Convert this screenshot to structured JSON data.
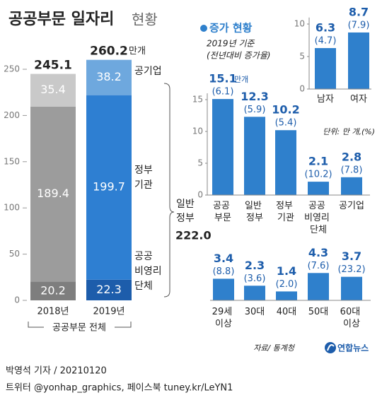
{
  "title": "공공부문 일자리",
  "title_suffix": "현황",
  "chart_data": [
    {
      "type": "stacked-bar",
      "categories": [
        "2018년",
        "2019년"
      ],
      "series": [
        {
          "name": "공공 비영리 단체",
          "colors": [
            "#7e7e7e",
            "#1d5dab"
          ],
          "values": [
            20.2,
            22.3
          ]
        },
        {
          "name": "정부 기관",
          "colors": [
            "#9c9c9c",
            "#2e7fd2"
          ],
          "values": [
            189.4,
            199.7
          ]
        },
        {
          "name": "공기업",
          "colors": [
            "#c9c9c9",
            "#6ea8de"
          ],
          "values": [
            35.4,
            38.2
          ]
        }
      ],
      "totals": [
        245.1,
        260.2
      ],
      "total_unit": "만개",
      "ylim": [
        0,
        265
      ],
      "yticks": [
        0,
        50,
        100,
        150,
        200,
        250
      ],
      "group_label": "공공부문 전체",
      "annotation": {
        "text": "일반 정부",
        "value": 222,
        "label": "222.0"
      }
    },
    {
      "type": "bar",
      "title": "증가 현황",
      "subtitle": [
        "2019년 기준",
        "(전년대비 증가율)"
      ],
      "categories": [
        "남자",
        "여자"
      ],
      "values": [
        6.3,
        8.7
      ],
      "rate_labels": [
        "(4.7)",
        "(7.9)"
      ],
      "color": "#2f80cc",
      "ylim": [
        0,
        11
      ],
      "yticks": [
        0,
        5,
        10
      ]
    },
    {
      "type": "bar",
      "categories": [
        "공공 부문",
        "일반 정부",
        "정부 기관",
        "공공 비영리 단체",
        "공기업"
      ],
      "values": [
        15.1,
        12.3,
        10.2,
        2.1,
        2.8
      ],
      "value_unit": "만개",
      "rate_labels": [
        "(6.1)",
        "(5.9)",
        "(5.4)",
        "(10.2)",
        "(7.8)"
      ],
      "color": "#2f80cc",
      "ylim": [
        0,
        16
      ],
      "yticks": [
        0,
        5,
        10,
        15
      ],
      "unit_note": "단위: 만 개,(%)"
    },
    {
      "type": "bar",
      "categories": [
        "29세 이상",
        "30대",
        "40대",
        "50대",
        "60대 이상"
      ],
      "values": [
        3.4,
        2.3,
        1.4,
        4.3,
        3.7
      ],
      "rate_labels": [
        "(8.8)",
        "(3.6)",
        "(2.0)",
        "(7.6)",
        "(23.2)"
      ],
      "color": "#2f80cc"
    }
  ],
  "source": "자료/ 통계청",
  "logo": "연합뉴스",
  "byline": "박영석 기자 / 20210120",
  "social": "트위터 @yonhap_graphics, 페이스북 tuney.kr/LeYN1"
}
